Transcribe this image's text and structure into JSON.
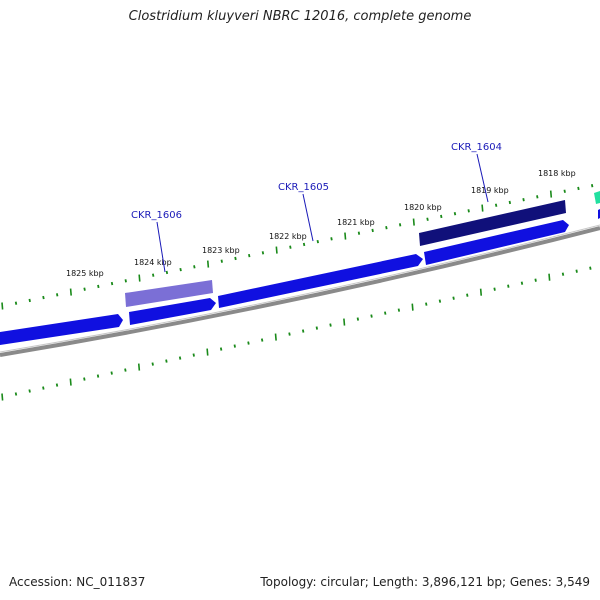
{
  "title": "Clostridium kluyveri NBRC 12016, complete genome",
  "footer": {
    "accession": "Accession: NC_011837",
    "stats": "Topology: circular; Length: 3,896,121 bp; Genes: 3,549"
  },
  "kbp_labels": [
    "1825 kbp",
    "1824 kbp",
    "1823 kbp",
    "1822 kbp",
    "1821 kbp",
    "1820 kbp",
    "1819 kbp",
    "1818 kbp"
  ],
  "gene_labels": [
    "CKR_1606",
    "CKR_1605",
    "CKR_1604"
  ],
  "colors": {
    "forward_gene": "#1010e0",
    "gene_1606_feature": "#7b6fd6",
    "gene_1604_feature": "#10107a",
    "tick": "#1a8a1a",
    "backbone": "#8a8a8a",
    "gene_label": "#1a1ab8",
    "partial_feature": "#22e0a0"
  }
}
